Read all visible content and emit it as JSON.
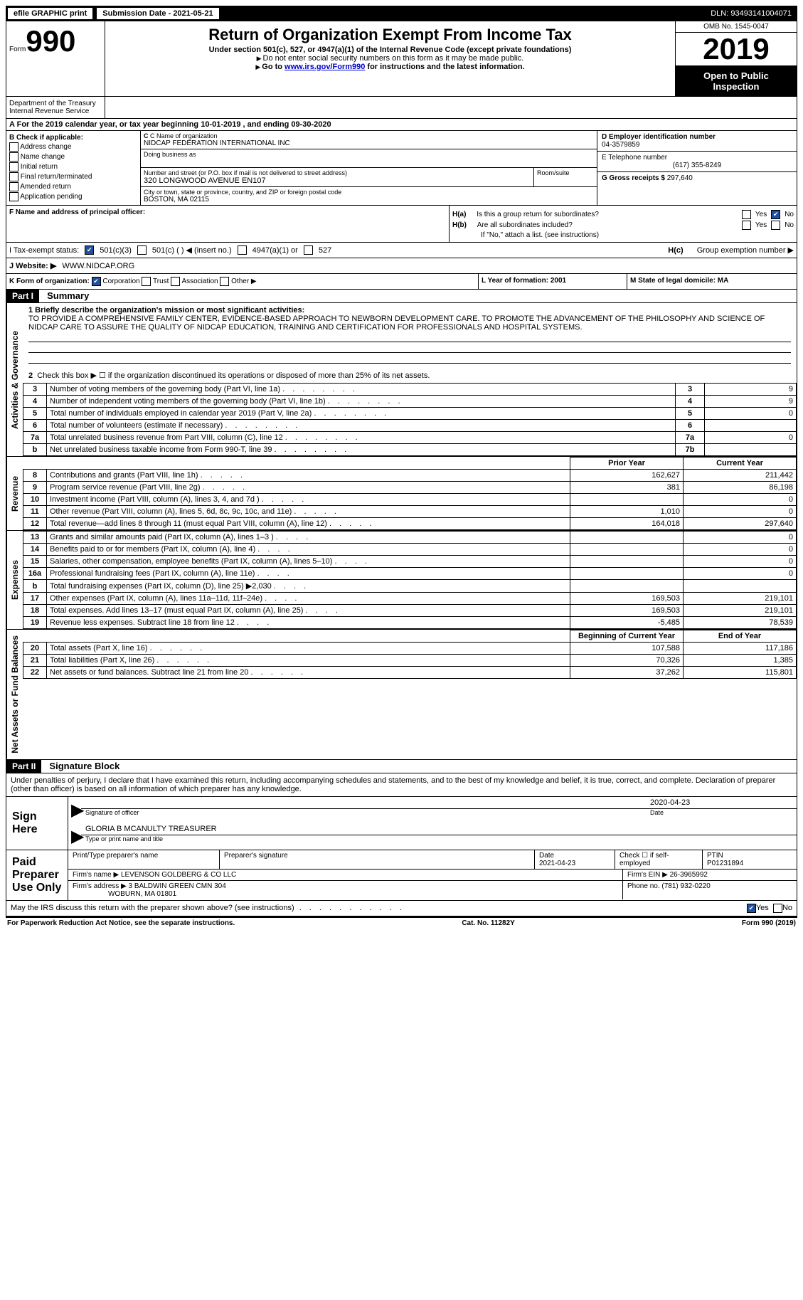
{
  "topbar": {
    "efile": "efile GRAPHIC print",
    "submission_label": "Submission Date - 2021-05-21",
    "dln_label": "DLN: 93493141004071"
  },
  "header": {
    "form_word": "Form",
    "form_num": "990",
    "title": "Return of Organization Exempt From Income Tax",
    "subtitle": "Under section 501(c), 527, or 4947(a)(1) of the Internal Revenue Code (except private foundations)",
    "line1": "Do not enter social security numbers on this form as it may be made public.",
    "line2_pre": "Go to ",
    "line2_link": "www.irs.gov/Form990",
    "line2_post": " for instructions and the latest information.",
    "omb": "OMB No. 1545-0047",
    "year": "2019",
    "open_public": "Open to Public Inspection",
    "dept": "Department of the Treasury\nInternal Revenue Service"
  },
  "period": "For the 2019 calendar year, or tax year beginning 10-01-2019    , and ending 09-30-2020",
  "boxB": {
    "label": "B Check if applicable:",
    "items": [
      "Address change",
      "Name change",
      "Initial return",
      "Final return/terminated",
      "Amended return",
      "Application pending"
    ]
  },
  "boxC": {
    "name_label": "C Name of organization",
    "name": "NIDCAP FEDERATION INTERNATIONAL INC",
    "dba_label": "Doing business as",
    "addr_label": "Number and street (or P.O. box if mail is not delivered to street address)",
    "addr": "320 LONGWOOD AVENUE EN107",
    "room_label": "Room/suite",
    "city_label": "City or town, state or province, country, and ZIP or foreign postal code",
    "city": "BOSTON, MA  02115"
  },
  "boxD": {
    "ein_label": "D Employer identification number",
    "ein": "04-3579859",
    "phone_label": "E Telephone number",
    "phone": "(617) 355-8249",
    "gross_label": "G Gross receipts $ ",
    "gross": "297,640"
  },
  "boxF": {
    "label": "F  Name and address of principal officer:"
  },
  "boxH": {
    "ha_label": "H(a)",
    "ha_text": "Is this a group return for subordinates?",
    "hb_label": "H(b)",
    "hb_text": "Are all subordinates included?",
    "hb_note": "If \"No,\" attach a list. (see instructions)",
    "hc_label": "H(c)",
    "hc_text": "Group exemption number ▶",
    "yes": "Yes",
    "no": "No"
  },
  "taxStatus": {
    "label": "I    Tax-exempt status:",
    "opts": [
      "501(c)(3)",
      "501(c) (   ) ◀ (insert no.)",
      "4947(a)(1) or",
      "527"
    ]
  },
  "website": {
    "label": "J    Website: ▶",
    "value": "WWW.NIDCAP.ORG"
  },
  "kOrg": {
    "label": "K Form of organization:",
    "opts": [
      "Corporation",
      "Trust",
      "Association",
      "Other ▶"
    ]
  },
  "lm": {
    "l": "L Year of formation: 2001",
    "m": "M State of legal domicile: MA"
  },
  "part1": {
    "header": "Part I",
    "title": "Summary",
    "side_gov": "Activities & Governance",
    "side_rev": "Revenue",
    "side_exp": "Expenses",
    "side_net": "Net Assets or Fund Balances",
    "line1_label": "1   Briefly describe the organization's mission or most significant activities:",
    "mission": "TO PROVIDE A COMPREHENSIVE FAMILY CENTER, EVIDENCE-BASED APPROACH TO NEWBORN DEVELOPMENT CARE. TO PROMOTE THE ADVANCEMENT OF THE PHILOSOPHY AND SCIENCE OF NIDCAP CARE TO ASSURE THE QUALITY OF NIDCAP EDUCATION, TRAINING AND CERTIFICATION FOR PROFESSIONALS AND HOSPITAL SYSTEMS.",
    "line2": "Check this box ▶ ☐  if the organization discontinued its operations or disposed of more than 25% of its net assets.",
    "gov_lines": [
      {
        "n": "3",
        "t": "Number of voting members of the governing body (Part VI, line 1a)",
        "box": "3",
        "v": "9"
      },
      {
        "n": "4",
        "t": "Number of independent voting members of the governing body (Part VI, line 1b)",
        "box": "4",
        "v": "9"
      },
      {
        "n": "5",
        "t": "Total number of individuals employed in calendar year 2019 (Part V, line 2a)",
        "box": "5",
        "v": "0"
      },
      {
        "n": "6",
        "t": "Total number of volunteers (estimate if necessary)",
        "box": "6",
        "v": ""
      },
      {
        "n": "7a",
        "t": "Total unrelated business revenue from Part VIII, column (C), line 12",
        "box": "7a",
        "v": "0"
      },
      {
        "n": "b",
        "t": "Net unrelated business taxable income from Form 990-T, line 39",
        "box": "7b",
        "v": ""
      }
    ],
    "col_prior": "Prior Year",
    "col_current": "Current Year",
    "rev_lines": [
      {
        "n": "8",
        "t": "Contributions and grants (Part VIII, line 1h)",
        "p": "162,627",
        "c": "211,442"
      },
      {
        "n": "9",
        "t": "Program service revenue (Part VIII, line 2g)",
        "p": "381",
        "c": "86,198"
      },
      {
        "n": "10",
        "t": "Investment income (Part VIII, column (A), lines 3, 4, and 7d )",
        "p": "",
        "c": "0"
      },
      {
        "n": "11",
        "t": "Other revenue (Part VIII, column (A), lines 5, 6d, 8c, 9c, 10c, and 11e)",
        "p": "1,010",
        "c": "0"
      },
      {
        "n": "12",
        "t": "Total revenue—add lines 8 through 11 (must equal Part VIII, column (A), line 12)",
        "p": "164,018",
        "c": "297,640"
      }
    ],
    "exp_lines": [
      {
        "n": "13",
        "t": "Grants and similar amounts paid (Part IX, column (A), lines 1–3 )",
        "p": "",
        "c": "0"
      },
      {
        "n": "14",
        "t": "Benefits paid to or for members (Part IX, column (A), line 4)",
        "p": "",
        "c": "0"
      },
      {
        "n": "15",
        "t": "Salaries, other compensation, employee benefits (Part IX, column (A), lines 5–10)",
        "p": "",
        "c": "0"
      },
      {
        "n": "16a",
        "t": "Professional fundraising fees (Part IX, column (A), line 11e)",
        "p": "",
        "c": "0"
      },
      {
        "n": "b",
        "t": "Total fundraising expenses (Part IX, column (D), line 25) ▶2,030",
        "p": "GREY",
        "c": "GREY"
      },
      {
        "n": "17",
        "t": "Other expenses (Part IX, column (A), lines 11a–11d, 11f–24e)",
        "p": "169,503",
        "c": "219,101"
      },
      {
        "n": "18",
        "t": "Total expenses. Add lines 13–17 (must equal Part IX, column (A), line 25)",
        "p": "169,503",
        "c": "219,101"
      },
      {
        "n": "19",
        "t": "Revenue less expenses. Subtract line 18 from line 12",
        "p": "-5,485",
        "c": "78,539"
      }
    ],
    "col_begin": "Beginning of Current Year",
    "col_end": "End of Year",
    "net_lines": [
      {
        "n": "20",
        "t": "Total assets (Part X, line 16)",
        "p": "107,588",
        "c": "117,186"
      },
      {
        "n": "21",
        "t": "Total liabilities (Part X, line 26)",
        "p": "70,326",
        "c": "1,385"
      },
      {
        "n": "22",
        "t": "Net assets or fund balances. Subtract line 21 from line 20",
        "p": "37,262",
        "c": "115,801"
      }
    ]
  },
  "part2": {
    "header": "Part II",
    "title": "Signature Block",
    "declare": "Under penalties of perjury, I declare that I have examined this return, including accompanying schedules and statements, and to the best of my knowledge and belief, it is true, correct, and complete. Declaration of preparer (other than officer) is based on all information of which preparer has any knowledge.",
    "sign_here": "Sign Here",
    "sig_officer": "Signature of officer",
    "sig_date": "2020-04-23",
    "date_label": "Date",
    "officer_name": "GLORIA B MCANULTY TREASURER",
    "type_name": "Type or print name and title",
    "paid_prep": "Paid Preparer Use Only",
    "prep_name_label": "Print/Type preparer's name",
    "prep_sig_label": "Preparer's signature",
    "prep_date_label": "Date",
    "prep_date": "2021-04-23",
    "check_if": "Check ☐ if self-employed",
    "ptin_label": "PTIN",
    "ptin": "P01231894",
    "firm_name_label": "Firm's name    ▶",
    "firm_name": "LEVENSON GOLDBERG & CO LLC",
    "firm_ein_label": "Firm's EIN ▶",
    "firm_ein": "26-3965992",
    "firm_addr_label": "Firm's address ▶",
    "firm_addr": "3 BALDWIN GREEN CMN 304",
    "firm_city": "WOBURN, MA  01801",
    "firm_phone_label": "Phone no.",
    "firm_phone": "(781) 932-0220",
    "discuss": "May the IRS discuss this return with the preparer shown above? (see instructions)",
    "yes": "Yes",
    "no": "No"
  },
  "footer": {
    "left": "For Paperwork Reduction Act Notice, see the separate instructions.",
    "mid": "Cat. No. 11282Y",
    "right": "Form 990 (2019)"
  }
}
